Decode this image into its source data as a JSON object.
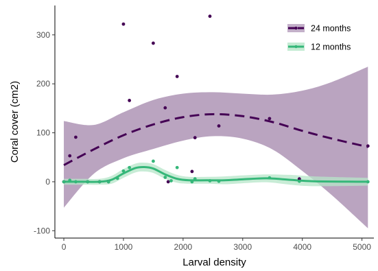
{
  "chart_data": {
    "type": "scatter",
    "xlabel": "Larval density",
    "ylabel": "Coral cover (cm2)",
    "xlim": [
      -150,
      5200
    ],
    "ylim": [
      -115,
      360
    ],
    "x_ticks": [
      0,
      1000,
      2000,
      3000,
      4000,
      5000
    ],
    "y_ticks": [
      -100,
      0,
      100,
      200,
      300
    ],
    "grid": false,
    "legend_position": "top-right",
    "series": [
      {
        "name": "24 months",
        "color": "#440154",
        "band_color": "#b49cbb",
        "line_style": "dashed",
        "points": [
          {
            "x": 0,
            "y": 0
          },
          {
            "x": 100,
            "y": 53
          },
          {
            "x": 200,
            "y": 91
          },
          {
            "x": 400,
            "y": 0
          },
          {
            "x": 600,
            "y": 0
          },
          {
            "x": 750,
            "y": 0
          },
          {
            "x": 1000,
            "y": 322
          },
          {
            "x": 1100,
            "y": 166
          },
          {
            "x": 1500,
            "y": 283
          },
          {
            "x": 1700,
            "y": 151
          },
          {
            "x": 1750,
            "y": 0
          },
          {
            "x": 1900,
            "y": 215
          },
          {
            "x": 2150,
            "y": 21
          },
          {
            "x": 2200,
            "y": 90
          },
          {
            "x": 2450,
            "y": 338
          },
          {
            "x": 2600,
            "y": 114
          },
          {
            "x": 3450,
            "y": 129
          },
          {
            "x": 3950,
            "y": 6
          },
          {
            "x": 5100,
            "y": 73
          }
        ],
        "fit": [
          {
            "x": 0,
            "y": 34
          },
          {
            "x": 500,
            "y": 66
          },
          {
            "x": 1000,
            "y": 95
          },
          {
            "x": 1500,
            "y": 117
          },
          {
            "x": 2000,
            "y": 132
          },
          {
            "x": 2500,
            "y": 138
          },
          {
            "x": 3000,
            "y": 134
          },
          {
            "x": 3500,
            "y": 122
          },
          {
            "x": 4000,
            "y": 104
          },
          {
            "x": 4500,
            "y": 88
          },
          {
            "x": 5100,
            "y": 71
          }
        ],
        "ci_upper": [
          {
            "x": 0,
            "y": 124
          },
          {
            "x": 500,
            "y": 116
          },
          {
            "x": 1000,
            "y": 142
          },
          {
            "x": 1500,
            "y": 167
          },
          {
            "x": 2000,
            "y": 180
          },
          {
            "x": 2500,
            "y": 183
          },
          {
            "x": 3000,
            "y": 180
          },
          {
            "x": 3500,
            "y": 178
          },
          {
            "x": 4000,
            "y": 186
          },
          {
            "x": 4500,
            "y": 204
          },
          {
            "x": 5100,
            "y": 235
          }
        ],
        "ci_lower": [
          {
            "x": 0,
            "y": -53
          },
          {
            "x": 500,
            "y": 16
          },
          {
            "x": 1000,
            "y": 48
          },
          {
            "x": 1500,
            "y": 67
          },
          {
            "x": 2000,
            "y": 84
          },
          {
            "x": 2500,
            "y": 93
          },
          {
            "x": 3000,
            "y": 88
          },
          {
            "x": 3500,
            "y": 66
          },
          {
            "x": 4000,
            "y": 22
          },
          {
            "x": 4500,
            "y": -28
          },
          {
            "x": 5100,
            "y": -95
          }
        ]
      },
      {
        "name": "12 months",
        "color": "#35b779",
        "band_color": "#b5e6c8",
        "line_style": "solid",
        "points": [
          {
            "x": 0,
            "y": 0
          },
          {
            "x": 100,
            "y": 3
          },
          {
            "x": 200,
            "y": 0
          },
          {
            "x": 400,
            "y": 0
          },
          {
            "x": 600,
            "y": 0
          },
          {
            "x": 750,
            "y": 0
          },
          {
            "x": 900,
            "y": 7
          },
          {
            "x": 1000,
            "y": 22
          },
          {
            "x": 1100,
            "y": 29
          },
          {
            "x": 1500,
            "y": 42
          },
          {
            "x": 1700,
            "y": 9
          },
          {
            "x": 1800,
            "y": 2
          },
          {
            "x": 1900,
            "y": 29
          },
          {
            "x": 2150,
            "y": 0
          },
          {
            "x": 2200,
            "y": 6
          },
          {
            "x": 2450,
            "y": 2
          },
          {
            "x": 2600,
            "y": 1
          },
          {
            "x": 3450,
            "y": 8
          },
          {
            "x": 3950,
            "y": 1
          },
          {
            "x": 5100,
            "y": 0
          }
        ],
        "fit": [
          {
            "x": 0,
            "y": 0
          },
          {
            "x": 300,
            "y": 0
          },
          {
            "x": 600,
            "y": 0
          },
          {
            "x": 800,
            "y": 4
          },
          {
            "x": 1000,
            "y": 17
          },
          {
            "x": 1200,
            "y": 28
          },
          {
            "x": 1350,
            "y": 30
          },
          {
            "x": 1500,
            "y": 27
          },
          {
            "x": 1700,
            "y": 15
          },
          {
            "x": 1900,
            "y": 6
          },
          {
            "x": 2100,
            "y": 3
          },
          {
            "x": 2400,
            "y": 3
          },
          {
            "x": 2700,
            "y": 3
          },
          {
            "x": 3000,
            "y": 5
          },
          {
            "x": 3400,
            "y": 7
          },
          {
            "x": 3800,
            "y": 4
          },
          {
            "x": 4200,
            "y": 1
          },
          {
            "x": 5100,
            "y": 0
          }
        ],
        "ci_upper": [
          {
            "x": 0,
            "y": 6
          },
          {
            "x": 300,
            "y": 6
          },
          {
            "x": 600,
            "y": 6
          },
          {
            "x": 800,
            "y": 12
          },
          {
            "x": 1000,
            "y": 26
          },
          {
            "x": 1200,
            "y": 37
          },
          {
            "x": 1350,
            "y": 39
          },
          {
            "x": 1500,
            "y": 36
          },
          {
            "x": 1700,
            "y": 24
          },
          {
            "x": 1900,
            "y": 14
          },
          {
            "x": 2100,
            "y": 10
          },
          {
            "x": 2400,
            "y": 10
          },
          {
            "x": 2700,
            "y": 11
          },
          {
            "x": 3000,
            "y": 13
          },
          {
            "x": 3400,
            "y": 15
          },
          {
            "x": 3800,
            "y": 14
          },
          {
            "x": 4200,
            "y": 11
          },
          {
            "x": 5100,
            "y": 8
          }
        ],
        "ci_lower": [
          {
            "x": 0,
            "y": -6
          },
          {
            "x": 300,
            "y": -6
          },
          {
            "x": 600,
            "y": -6
          },
          {
            "x": 800,
            "y": -4
          },
          {
            "x": 1000,
            "y": 8
          },
          {
            "x": 1200,
            "y": 19
          },
          {
            "x": 1350,
            "y": 21
          },
          {
            "x": 1500,
            "y": 18
          },
          {
            "x": 1700,
            "y": 6
          },
          {
            "x": 1900,
            "y": -2
          },
          {
            "x": 2100,
            "y": -4
          },
          {
            "x": 2400,
            "y": -4
          },
          {
            "x": 2700,
            "y": -5
          },
          {
            "x": 3000,
            "y": -3
          },
          {
            "x": 3400,
            "y": -1
          },
          {
            "x": 3800,
            "y": -6
          },
          {
            "x": 4200,
            "y": -9
          },
          {
            "x": 5100,
            "y": -8
          }
        ]
      }
    ]
  }
}
